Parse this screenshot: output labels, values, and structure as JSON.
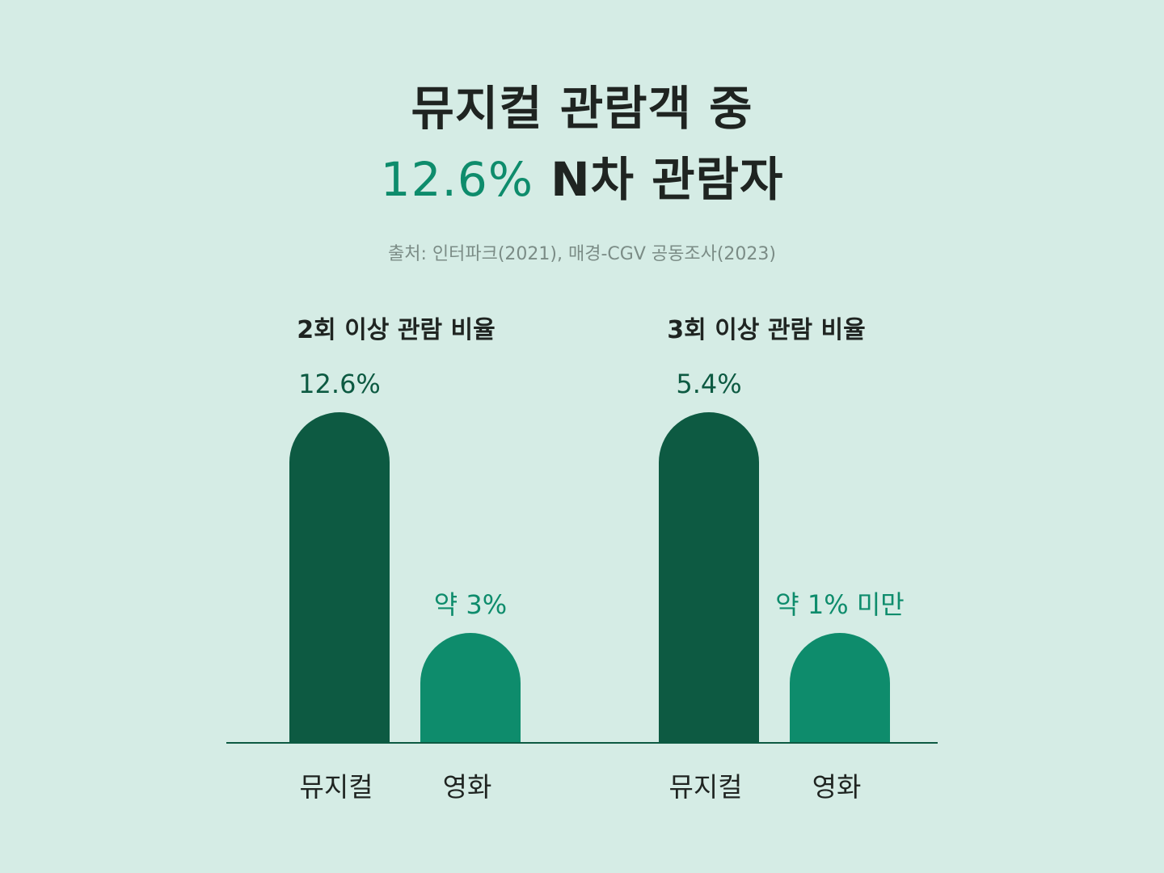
{
  "title": {
    "line1": "뮤지컬 관람객 중",
    "line2_highlight": "12.6%",
    "line2_rest": " N차 관람자"
  },
  "source": "출처: 인터파크(2021), 매경-CGV 공동조사(2023)",
  "colors": {
    "background": "#d5ece5",
    "musical_bar": "#0d5a42",
    "movie_bar": "#0e8c6c",
    "musical_label": "#0d5a42",
    "movie_label": "#0e8c6c",
    "axis": "#0d5a42"
  },
  "chart_data": [
    {
      "type": "bar",
      "title": "2회 이상 관람 비율",
      "categories": [
        "뮤지컬",
        "영화"
      ],
      "values": [
        12.6,
        3
      ],
      "value_labels": [
        "12.6%",
        "약 3%"
      ],
      "unit": "%"
    },
    {
      "type": "bar",
      "title": "3회 이상 관람 비율",
      "categories": [
        "뮤지컬",
        "영화"
      ],
      "values": [
        5.4,
        1
      ],
      "value_labels": [
        "5.4%",
        "약 1% 미만"
      ],
      "unit": "%"
    }
  ]
}
